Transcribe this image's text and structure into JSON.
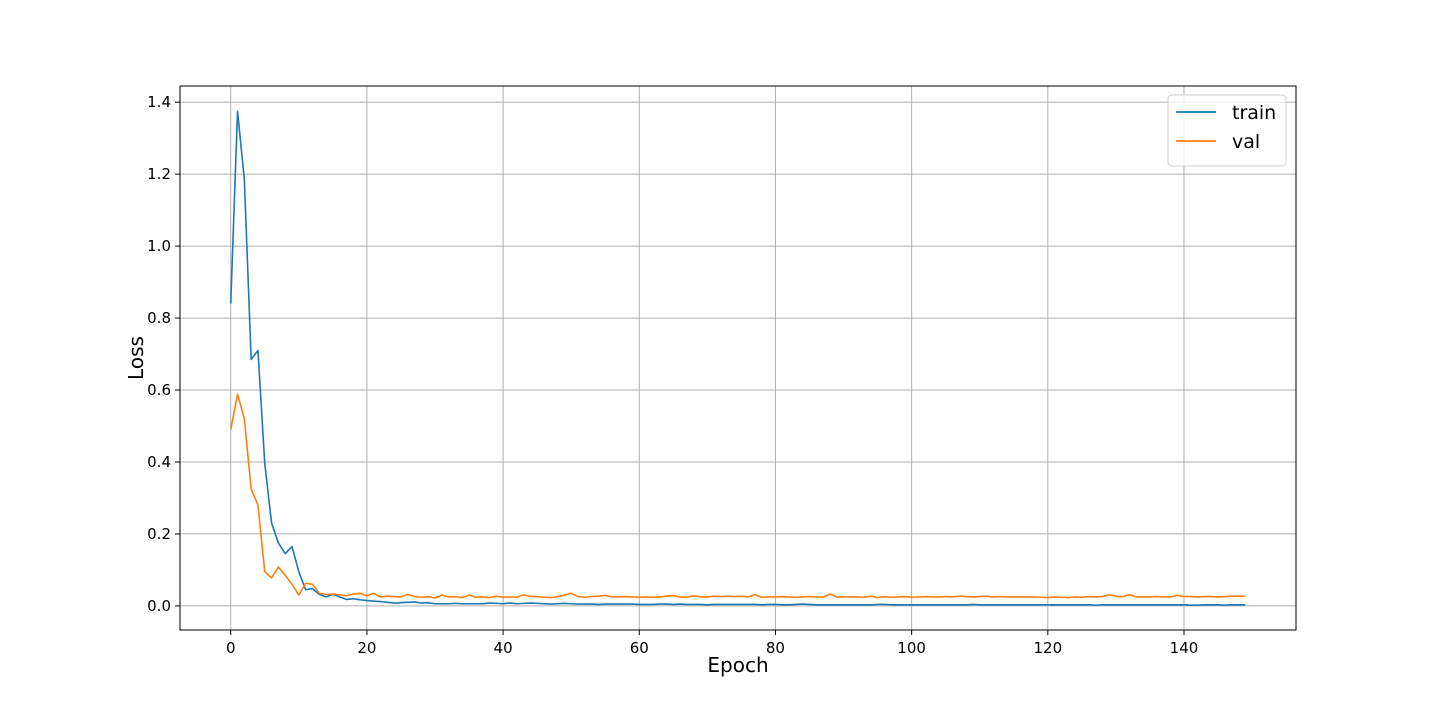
{
  "chart_data": {
    "type": "line",
    "xlabel": "Epoch",
    "ylabel": "Loss",
    "xlim": [
      -7.45,
      156.45
    ],
    "ylim": [
      -0.067,
      1.445
    ],
    "xticks": [
      0,
      20,
      40,
      60,
      80,
      100,
      120,
      140
    ],
    "yticks": [
      0.0,
      0.2,
      0.4,
      0.6,
      0.8,
      1.0,
      1.2,
      1.4
    ],
    "ytick_labels": [
      "0.0",
      "0.2",
      "0.4",
      "0.6",
      "0.8",
      "1.0",
      "1.2",
      "1.4"
    ],
    "grid": true,
    "legend_position": "top-right",
    "series": [
      {
        "name": "train",
        "color": "#1f77b4",
        "x": [
          0,
          1,
          2,
          3,
          4,
          5,
          6,
          7,
          8,
          9,
          10,
          11,
          12,
          13,
          14,
          15,
          16,
          17,
          18,
          19,
          20,
          21,
          22,
          23,
          24,
          25,
          26,
          27,
          28,
          29,
          30,
          31,
          32,
          33,
          34,
          35,
          36,
          37,
          38,
          39,
          40,
          41,
          42,
          43,
          44,
          45,
          46,
          47,
          48,
          49,
          50,
          51,
          52,
          53,
          54,
          55,
          56,
          57,
          58,
          59,
          60,
          61,
          62,
          63,
          64,
          65,
          66,
          67,
          68,
          69,
          70,
          71,
          72,
          73,
          74,
          75,
          76,
          77,
          78,
          79,
          80,
          81,
          82,
          83,
          84,
          85,
          86,
          87,
          88,
          89,
          90,
          91,
          92,
          93,
          94,
          95,
          96,
          97,
          98,
          99,
          100,
          101,
          102,
          103,
          104,
          105,
          106,
          107,
          108,
          109,
          110,
          111,
          112,
          113,
          114,
          115,
          116,
          117,
          118,
          119,
          120,
          121,
          122,
          123,
          124,
          125,
          126,
          127,
          128,
          129,
          130,
          131,
          132,
          133,
          134,
          135,
          136,
          137,
          138,
          139,
          140,
          141,
          142,
          143,
          144,
          145,
          146,
          147,
          148,
          149
        ],
        "values": [
          0.84,
          1.375,
          1.185,
          0.685,
          0.71,
          0.395,
          0.23,
          0.175,
          0.145,
          0.165,
          0.095,
          0.045,
          0.048,
          0.032,
          0.025,
          0.032,
          0.025,
          0.018,
          0.02,
          0.017,
          0.015,
          0.013,
          0.012,
          0.01,
          0.008,
          0.009,
          0.01,
          0.011,
          0.008,
          0.009,
          0.006,
          0.006,
          0.006,
          0.007,
          0.006,
          0.006,
          0.006,
          0.006,
          0.008,
          0.007,
          0.006,
          0.008,
          0.006,
          0.007,
          0.008,
          0.007,
          0.006,
          0.005,
          0.006,
          0.007,
          0.006,
          0.005,
          0.005,
          0.005,
          0.004,
          0.005,
          0.005,
          0.005,
          0.005,
          0.005,
          0.004,
          0.004,
          0.004,
          0.005,
          0.005,
          0.004,
          0.005,
          0.004,
          0.004,
          0.004,
          0.003,
          0.004,
          0.004,
          0.004,
          0.004,
          0.004,
          0.004,
          0.004,
          0.003,
          0.004,
          0.004,
          0.003,
          0.003,
          0.004,
          0.005,
          0.004,
          0.003,
          0.003,
          0.003,
          0.003,
          0.003,
          0.003,
          0.003,
          0.003,
          0.003,
          0.004,
          0.004,
          0.003,
          0.003,
          0.003,
          0.003,
          0.003,
          0.003,
          0.003,
          0.003,
          0.003,
          0.003,
          0.003,
          0.003,
          0.004,
          0.003,
          0.003,
          0.003,
          0.003,
          0.003,
          0.003,
          0.003,
          0.003,
          0.003,
          0.003,
          0.003,
          0.003,
          0.003,
          0.003,
          0.003,
          0.003,
          0.003,
          0.002,
          0.003,
          0.003,
          0.003,
          0.003,
          0.003,
          0.003,
          0.003,
          0.003,
          0.003,
          0.003,
          0.003,
          0.003,
          0.003,
          0.002,
          0.002,
          0.003,
          0.003,
          0.003,
          0.002,
          0.003,
          0.003,
          0.003
        ]
      },
      {
        "name": "val",
        "color": "#ff7f0e",
        "x": [
          0,
          1,
          2,
          3,
          4,
          5,
          6,
          7,
          8,
          9,
          10,
          11,
          12,
          13,
          14,
          15,
          16,
          17,
          18,
          19,
          20,
          21,
          22,
          23,
          24,
          25,
          26,
          27,
          28,
          29,
          30,
          31,
          32,
          33,
          34,
          35,
          36,
          37,
          38,
          39,
          40,
          41,
          42,
          43,
          44,
          45,
          46,
          47,
          48,
          49,
          50,
          51,
          52,
          53,
          54,
          55,
          56,
          57,
          58,
          59,
          60,
          61,
          62,
          63,
          64,
          65,
          66,
          67,
          68,
          69,
          70,
          71,
          72,
          73,
          74,
          75,
          76,
          77,
          78,
          79,
          80,
          81,
          82,
          83,
          84,
          85,
          86,
          87,
          88,
          89,
          90,
          91,
          92,
          93,
          94,
          95,
          96,
          97,
          98,
          99,
          100,
          101,
          102,
          103,
          104,
          105,
          106,
          107,
          108,
          109,
          110,
          111,
          112,
          113,
          114,
          115,
          116,
          117,
          118,
          119,
          120,
          121,
          122,
          123,
          124,
          125,
          126,
          127,
          128,
          129,
          130,
          131,
          132,
          133,
          134,
          135,
          136,
          137,
          138,
          139,
          140,
          141,
          142,
          143,
          144,
          145,
          146,
          147,
          148,
          149
        ],
        "values": [
          0.49,
          0.588,
          0.52,
          0.325,
          0.28,
          0.095,
          0.078,
          0.108,
          0.085,
          0.06,
          0.03,
          0.063,
          0.06,
          0.035,
          0.032,
          0.033,
          0.031,
          0.028,
          0.033,
          0.035,
          0.028,
          0.035,
          0.025,
          0.027,
          0.026,
          0.025,
          0.032,
          0.026,
          0.024,
          0.026,
          0.022,
          0.03,
          0.025,
          0.026,
          0.023,
          0.03,
          0.024,
          0.025,
          0.023,
          0.027,
          0.024,
          0.025,
          0.024,
          0.031,
          0.026,
          0.026,
          0.024,
          0.023,
          0.026,
          0.03,
          0.035,
          0.026,
          0.024,
          0.026,
          0.027,
          0.029,
          0.025,
          0.025,
          0.026,
          0.025,
          0.024,
          0.025,
          0.024,
          0.025,
          0.027,
          0.029,
          0.024,
          0.025,
          0.028,
          0.025,
          0.025,
          0.027,
          0.026,
          0.027,
          0.026,
          0.027,
          0.025,
          0.031,
          0.024,
          0.025,
          0.025,
          0.026,
          0.025,
          0.024,
          0.025,
          0.026,
          0.025,
          0.024,
          0.033,
          0.025,
          0.025,
          0.025,
          0.025,
          0.024,
          0.027,
          0.023,
          0.026,
          0.024,
          0.025,
          0.026,
          0.024,
          0.025,
          0.026,
          0.025,
          0.025,
          0.026,
          0.025,
          0.027,
          0.026,
          0.025,
          0.026,
          0.027,
          0.025,
          0.026,
          0.025,
          0.025,
          0.025,
          0.025,
          0.025,
          0.024,
          0.023,
          0.025,
          0.024,
          0.023,
          0.025,
          0.024,
          0.026,
          0.025,
          0.026,
          0.031,
          0.027,
          0.026,
          0.031,
          0.025,
          0.025,
          0.025,
          0.026,
          0.025,
          0.025,
          0.029,
          0.026,
          0.026,
          0.025,
          0.026,
          0.026,
          0.025,
          0.026,
          0.027,
          0.027,
          0.027
        ]
      }
    ]
  }
}
